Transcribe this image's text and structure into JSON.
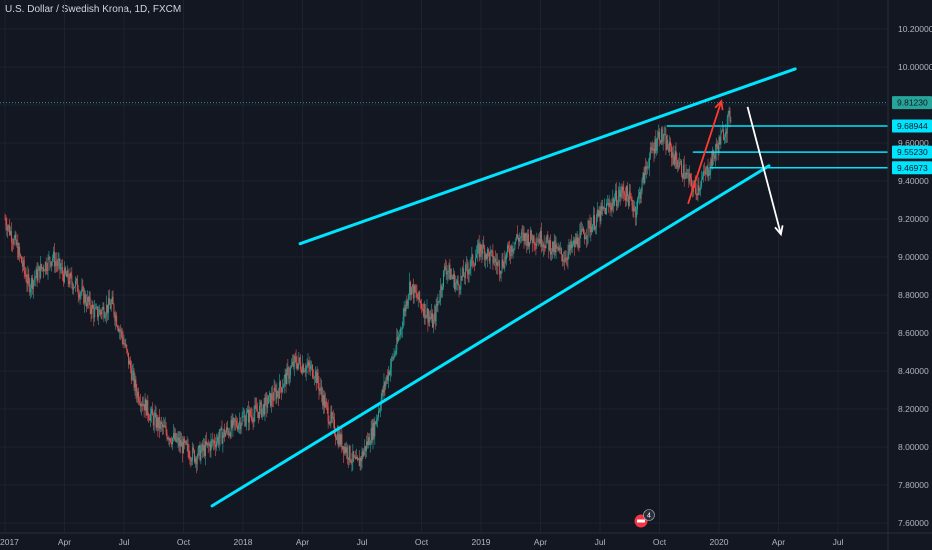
{
  "header": {
    "title": "U.S. Dollar / Swedish Krona, 1D, FXCM"
  },
  "colors": {
    "background": "#131722",
    "up_candle": "#26a69a",
    "down_candle": "#ef5350",
    "trendline": "#00e5ff",
    "projection_up": "#ff3b30",
    "projection_down": "#ffffff",
    "axis_text": "#b2b5be"
  },
  "badges": {
    "event_count": "4"
  },
  "chart_data": {
    "type": "candlestick",
    "title": "U.S. Dollar / Swedish Krona, 1D, FXCM",
    "y_axis_side": "right",
    "ylim": [
      7.6,
      10.3
    ],
    "y_ticks": [
      "10.20000",
      "10.00000",
      "9.80000",
      "9.60000",
      "9.40000",
      "9.20000",
      "9.00000",
      "8.80000",
      "8.60000",
      "8.40000",
      "8.20000",
      "8.00000",
      "7.80000",
      "7.60000"
    ],
    "x_ticks": [
      "2017",
      "Apr",
      "Jul",
      "Oct",
      "2018",
      "Apr",
      "Jul",
      "Oct",
      "2019",
      "Apr",
      "Jul",
      "Oct",
      "2020",
      "Apr",
      "Jul"
    ],
    "price_labels": [
      {
        "value": "9.81230",
        "kind": "last-price"
      },
      {
        "value": "9.68944",
        "kind": "horizontal-line"
      },
      {
        "value": "9.55230",
        "kind": "horizontal-line"
      },
      {
        "value": "9.46973",
        "kind": "horizontal-line"
      }
    ],
    "close_path": [
      [
        0,
        9.2
      ],
      [
        0.05,
        9.05
      ],
      [
        0.1,
        8.85
      ],
      [
        0.16,
        8.95
      ],
      [
        0.2,
        9.0
      ],
      [
        0.25,
        8.9
      ],
      [
        0.3,
        8.85
      ],
      [
        0.38,
        8.7
      ],
      [
        0.45,
        8.75
      ],
      [
        0.5,
        8.55
      ],
      [
        0.55,
        8.3
      ],
      [
        0.62,
        8.15
      ],
      [
        0.7,
        8.05
      ],
      [
        0.8,
        7.95
      ],
      [
        0.9,
        8.05
      ],
      [
        1.0,
        8.15
      ],
      [
        1.08,
        8.2
      ],
      [
        1.15,
        8.3
      ],
      [
        1.22,
        8.45
      ],
      [
        1.3,
        8.4
      ],
      [
        1.35,
        8.2
      ],
      [
        1.4,
        8.05
      ],
      [
        1.48,
        7.9
      ],
      [
        1.55,
        8.1
      ],
      [
        1.6,
        8.35
      ],
      [
        1.65,
        8.55
      ],
      [
        1.7,
        8.85
      ],
      [
        1.75,
        8.75
      ],
      [
        1.8,
        8.65
      ],
      [
        1.85,
        8.95
      ],
      [
        1.9,
        8.85
      ],
      [
        2.0,
        9.05
      ],
      [
        2.08,
        8.95
      ],
      [
        2.15,
        9.1
      ],
      [
        2.25,
        9.1
      ],
      [
        2.35,
        9.0
      ],
      [
        2.45,
        9.15
      ],
      [
        2.52,
        9.25
      ],
      [
        2.6,
        9.35
      ],
      [
        2.65,
        9.25
      ],
      [
        2.7,
        9.5
      ],
      [
        2.75,
        9.65
      ],
      [
        2.8,
        9.55
      ],
      [
        2.85,
        9.45
      ],
      [
        2.9,
        9.35
      ],
      [
        2.95,
        9.45
      ],
      [
        3.0,
        9.6
      ],
      [
        3.05,
        9.75
      ]
    ],
    "trendlines": [
      {
        "name": "upper-channel",
        "from": [
          1.24,
          9.07
        ],
        "to": [
          3.32,
          9.99
        ]
      },
      {
        "name": "lower-channel",
        "from": [
          0.87,
          7.69
        ],
        "to": [
          3.21,
          9.48
        ]
      }
    ],
    "horizontal_lines": [
      {
        "value": 9.68944,
        "from_t": 2.78
      },
      {
        "value": 9.5523,
        "from_t": 2.89
      },
      {
        "value": 9.46973,
        "from_t": 2.96
      }
    ],
    "projections": [
      {
        "name": "rally-arrow",
        "points": [
          [
            2.87,
            9.28
          ],
          [
            3.01,
            9.82
          ]
        ]
      },
      {
        "name": "drop-arrow",
        "points": [
          [
            3.12,
            9.79
          ],
          [
            3.26,
            9.12
          ]
        ]
      }
    ]
  }
}
